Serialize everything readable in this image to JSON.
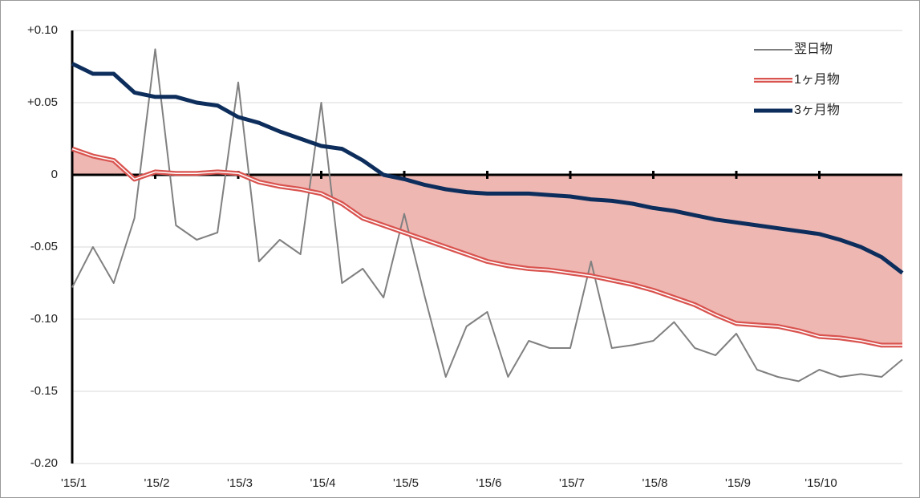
{
  "chart_data": {
    "type": "line",
    "categories": [
      "'15/1",
      null,
      null,
      null,
      "'15/2",
      null,
      null,
      null,
      "'15/3",
      null,
      null,
      null,
      "'15/4",
      null,
      null,
      null,
      "'15/5",
      null,
      null,
      null,
      "'15/6",
      null,
      null,
      null,
      "'15/7",
      null,
      null,
      null,
      "'15/8",
      null,
      null,
      null,
      "'15/9",
      null,
      null,
      null,
      "'15/10",
      null,
      null,
      null,
      null
    ],
    "ylim": [
      -0.2,
      0.1
    ],
    "yticks": [
      {
        "value": 0.1,
        "label": "+0.10"
      },
      {
        "value": 0.05,
        "label": "+0.05"
      },
      0,
      {
        "value": -0.05,
        "label": "-0.05"
      },
      {
        "value": -0.1,
        "label": "-0.10"
      },
      {
        "value": -0.15,
        "label": "-0.15"
      },
      {
        "value": -0.2,
        "label": "-0.20"
      }
    ],
    "grid": true,
    "legend": "top-right",
    "series": [
      {
        "name": "翌日物",
        "color": "#808080",
        "values": [
          -0.078,
          -0.05,
          -0.075,
          -0.03,
          0.087,
          -0.035,
          -0.045,
          -0.04,
          0.064,
          -0.06,
          -0.045,
          -0.055,
          0.05,
          -0.075,
          -0.065,
          -0.085,
          -0.027,
          -0.085,
          -0.14,
          -0.105,
          -0.095,
          -0.14,
          -0.115,
          -0.12,
          -0.12,
          -0.06,
          -0.12,
          -0.118,
          -0.115,
          -0.102,
          -0.12,
          -0.125,
          -0.11,
          -0.135,
          -0.14,
          -0.143,
          -0.135,
          -0.14,
          -0.138,
          -0.14,
          -0.128
        ]
      },
      {
        "name": "1ヶ月物",
        "color": "#d9534f",
        "fill": "#efb7b2",
        "values": [
          0.018,
          0.013,
          0.01,
          -0.003,
          0.002,
          0.001,
          0.001,
          0.002,
          0.001,
          -0.005,
          -0.008,
          -0.01,
          -0.013,
          -0.02,
          -0.03,
          -0.035,
          -0.04,
          -0.045,
          -0.05,
          -0.055,
          -0.06,
          -0.063,
          -0.065,
          -0.066,
          -0.068,
          -0.07,
          -0.073,
          -0.076,
          -0.08,
          -0.085,
          -0.09,
          -0.097,
          -0.103,
          -0.104,
          -0.105,
          -0.108,
          -0.112,
          -0.113,
          -0.115,
          -0.118,
          -0.118
        ]
      },
      {
        "name": "3ヶ月物",
        "color": "#0d2e5c",
        "values": [
          0.077,
          0.07,
          0.07,
          0.057,
          0.054,
          0.054,
          0.05,
          0.048,
          0.04,
          0.036,
          0.03,
          0.025,
          0.02,
          0.018,
          0.01,
          0.0,
          -0.003,
          -0.007,
          -0.01,
          -0.012,
          -0.013,
          -0.013,
          -0.013,
          -0.014,
          -0.015,
          -0.017,
          -0.018,
          -0.02,
          -0.023,
          -0.025,
          -0.028,
          -0.031,
          -0.033,
          -0.035,
          -0.037,
          -0.039,
          -0.041,
          -0.045,
          -0.05,
          -0.057,
          -0.068
        ]
      }
    ]
  }
}
